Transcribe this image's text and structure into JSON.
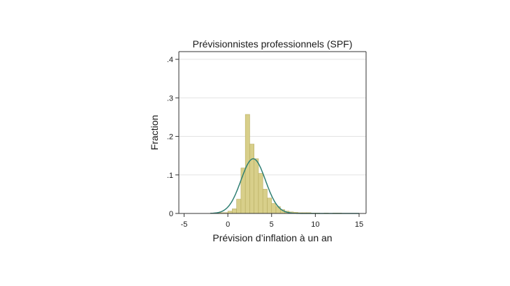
{
  "chart_data": {
    "type": "bar",
    "title": "Prévisionnistes professionnels (SPF)",
    "xlabel": "Prévision d’inflation à un an",
    "ylabel": "Fraction",
    "xlim": [
      -5.6,
      15.8
    ],
    "ylim": [
      0,
      0.42
    ],
    "grid": true,
    "x_ticks": [
      -5,
      0,
      5,
      10,
      15
    ],
    "x_tick_labels": [
      "-5",
      "0",
      "5",
      "10",
      "15"
    ],
    "y_ticks": [
      0,
      0.1,
      0.2,
      0.3,
      0.4
    ],
    "y_tick_labels": [
      "0",
      ".1",
      ".2",
      ".3",
      ".4"
    ],
    "bin_width": 0.5,
    "bins": [
      {
        "x0": -2.0,
        "value": 0.001
      },
      {
        "x0": -1.5,
        "value": 0.001
      },
      {
        "x0": -1.0,
        "value": 0.002
      },
      {
        "x0": -0.5,
        "value": 0.002
      },
      {
        "x0": 0.0,
        "value": 0.006
      },
      {
        "x0": 0.5,
        "value": 0.012
      },
      {
        "x0": 1.0,
        "value": 0.037
      },
      {
        "x0": 1.5,
        "value": 0.118
      },
      {
        "x0": 2.0,
        "value": 0.257
      },
      {
        "x0": 2.5,
        "value": 0.18
      },
      {
        "x0": 3.0,
        "value": 0.142
      },
      {
        "x0": 3.5,
        "value": 0.104
      },
      {
        "x0": 4.0,
        "value": 0.063
      },
      {
        "x0": 4.5,
        "value": 0.04
      },
      {
        "x0": 5.0,
        "value": 0.026
      },
      {
        "x0": 5.5,
        "value": 0.018
      },
      {
        "x0": 6.0,
        "value": 0.01
      },
      {
        "x0": 6.5,
        "value": 0.006
      },
      {
        "x0": 7.0,
        "value": 0.004
      },
      {
        "x0": 7.5,
        "value": 0.003
      },
      {
        "x0": 8.0,
        "value": 0.002
      },
      {
        "x0": 8.5,
        "value": 0.002
      },
      {
        "x0": 9.0,
        "value": 0.002
      },
      {
        "x0": 9.5,
        "value": 0.001
      },
      {
        "x0": 10.0,
        "value": 0.001
      },
      {
        "x0": 11.0,
        "value": 0.001
      },
      {
        "x0": 12.0,
        "value": 0.001
      },
      {
        "x0": 12.5,
        "value": 0.001
      }
    ],
    "density_curve": {
      "type": "normal",
      "mean": 2.9,
      "sd": 1.4,
      "peak": 0.142
    },
    "colors": {
      "bar_fill": "#d8cf8a",
      "bar_stroke": "#b8ad60",
      "curve": "#2f7f73"
    }
  }
}
